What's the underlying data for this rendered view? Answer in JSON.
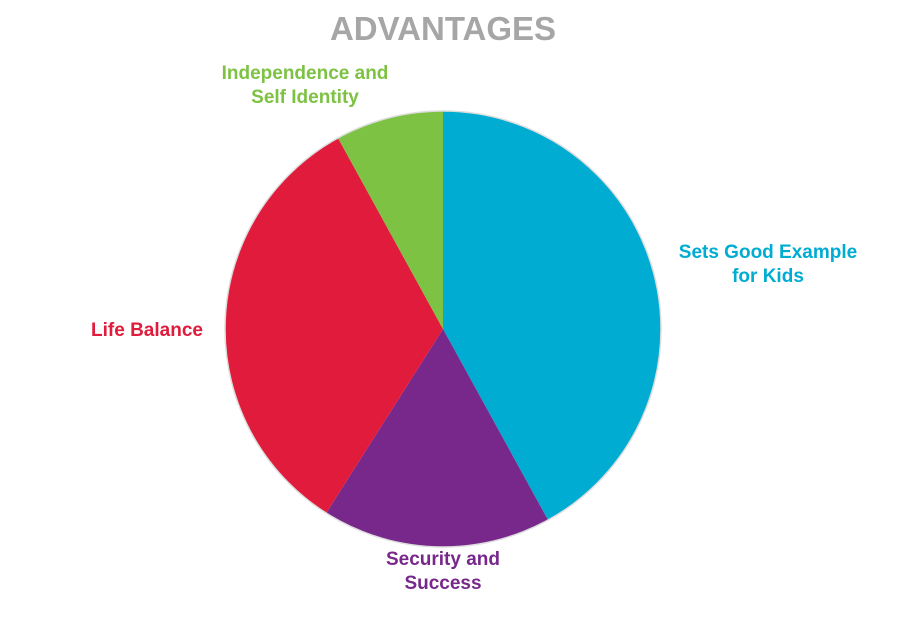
{
  "chart_data": {
    "type": "pie",
    "title": "ADVANTAGES",
    "categories": [
      "Sets Good Example\nfor Kids",
      "Security and\nSuccess",
      "Life Balance",
      "Independence and\nSelf Identity"
    ],
    "values": [
      42,
      17,
      33,
      8
    ],
    "colors": [
      "#00acd1",
      "#77288a",
      "#e01b3b",
      "#7dc243"
    ]
  }
}
